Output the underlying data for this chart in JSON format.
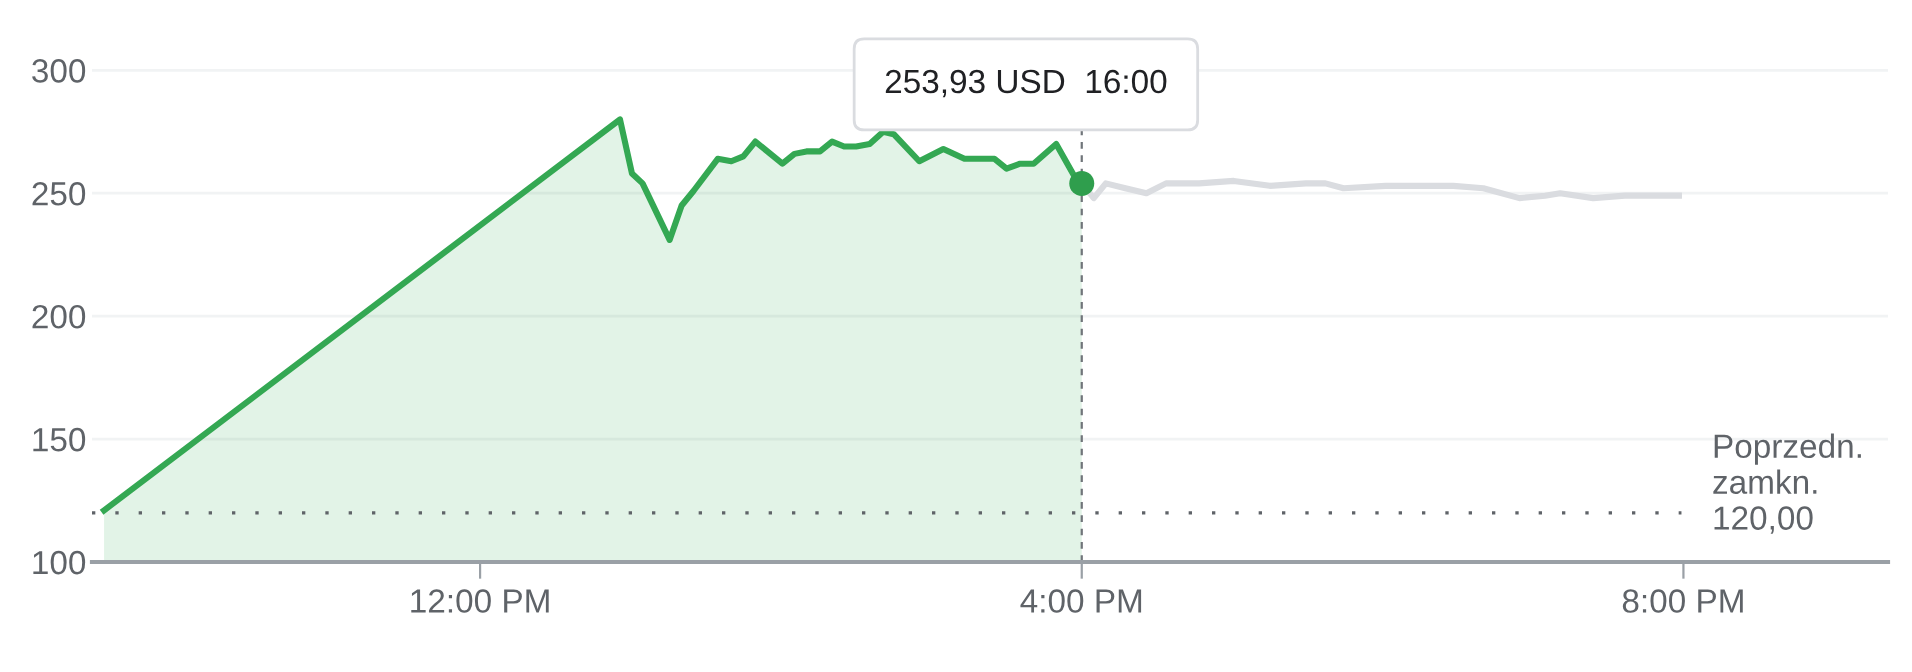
{
  "chart_data": {
    "type": "area",
    "x": [
      9.5,
      12.93,
      13.01,
      13.08,
      13.26,
      13.34,
      13.42,
      13.58,
      13.67,
      13.75,
      13.83,
      14.01,
      14.09,
      14.17,
      14.26,
      14.34,
      14.42,
      14.5,
      14.59,
      14.68,
      14.75,
      14.92,
      15.08,
      15.22,
      15.42,
      15.5,
      15.59,
      15.68,
      15.83,
      15.95,
      16.0
    ],
    "series": [
      {
        "color": "#34a853",
        "values": [
          121,
          280,
          258,
          254,
          231,
          245,
          251,
          264,
          263,
          265,
          271,
          262,
          266,
          267,
          267,
          271,
          269,
          269,
          270,
          275,
          274,
          263,
          268,
          264,
          264,
          260,
          262,
          262,
          270,
          257,
          254
        ]
      },
      {
        "type": "line",
        "color": "#dadce0",
        "x": [
          16.0,
          16.08,
          16.16,
          16.29,
          16.43,
          16.56,
          16.78,
          17.01,
          17.25,
          17.49,
          17.62,
          17.74,
          18.02,
          18.47,
          18.67,
          18.91,
          19.08,
          19.18,
          19.4,
          19.61,
          19.97
        ],
        "values": [
          254,
          248,
          254,
          252,
          250,
          254,
          254,
          255,
          253,
          254,
          254,
          252,
          253,
          253,
          252,
          248,
          249,
          250,
          248,
          249,
          249
        ]
      },
      {
        "type": "scatter",
        "color": "#2f9e4d",
        "x": [
          16.0
        ],
        "values": [
          254
        ]
      }
    ],
    "xlim": [
      9.42,
      21.36
    ],
    "ylim": [
      100,
      310
    ],
    "xticks": [
      {
        "value": 12,
        "label": "12:00 PM"
      },
      {
        "value": 16,
        "label": "4:00 PM"
      },
      {
        "value": 20,
        "label": "8:00 PM"
      }
    ],
    "yticks": [
      100,
      150,
      200,
      250,
      300
    ],
    "grid": "y",
    "legend": false,
    "ref_lines": [
      {
        "axis": "y",
        "value": 120,
        "label": "Poprzedn.\nzamkn.\n120,00",
        "line_style": "dotted",
        "color": "#5f6368"
      },
      {
        "axis": "x",
        "value": 16,
        "line_style": "dashed",
        "color": "#70757a"
      }
    ],
    "annotations": [
      "253,93 USD  16:00"
    ]
  }
}
